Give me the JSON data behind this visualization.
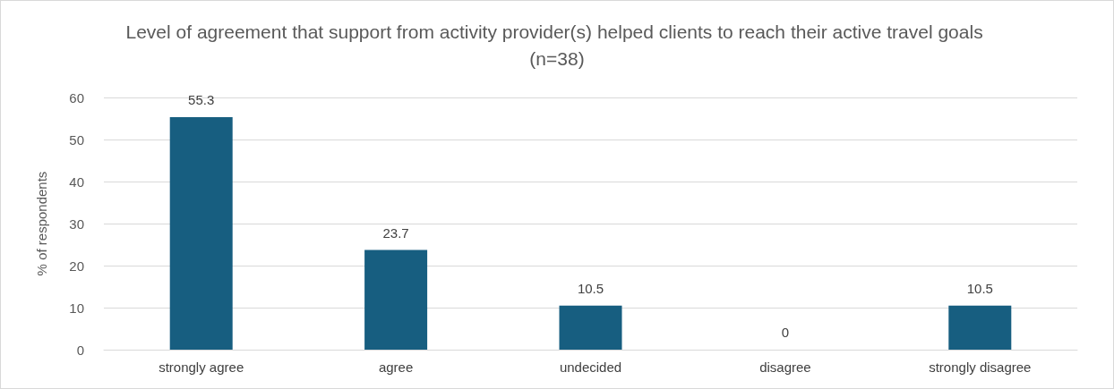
{
  "chart_data": {
    "type": "bar",
    "title": "Level of agreement that support from activity provider(s) helped clients to reach their active travel goals (n=38)",
    "ylabel": "% of respondents",
    "categories": [
      "strongly agree",
      "agree",
      "undecided",
      "disagree",
      "strongly disagree"
    ],
    "values": [
      55.3,
      23.7,
      10.5,
      0,
      10.5
    ],
    "color": "#175e80",
    "ylim": [
      0,
      60
    ],
    "yticks": [
      0,
      10,
      20,
      30,
      40,
      50,
      60
    ],
    "grid": "y",
    "data_labels": true
  }
}
